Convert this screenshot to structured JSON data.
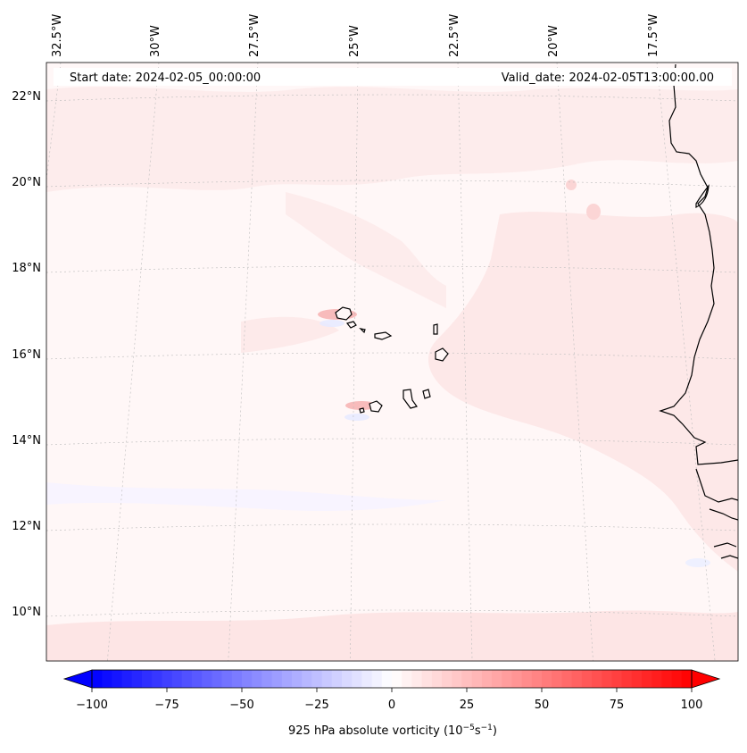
{
  "header": {
    "start_date": "Start date: 2024-02-05_00:00:00",
    "valid_date": "Valid_date: 2024-02-05T13:00:00.00"
  },
  "map": {
    "region": "Eastern tropical Atlantic, Cape Verde Islands and West African coast",
    "lon_labels": [
      "32.5°W",
      "30°W",
      "27.5°W",
      "25°W",
      "22.5°W",
      "20°W",
      "17.5°W"
    ],
    "lat_labels": [
      "22°N",
      "20°N",
      "18°N",
      "16°N",
      "14°N",
      "12°N",
      "10°N"
    ],
    "gridlines": true,
    "field": "925 hPa absolute vorticity",
    "colors": {
      "negative": "#0000ff",
      "zero": "#ffffff",
      "positive": "#ff0000",
      "coast": "#000000"
    }
  },
  "colorbar": {
    "tick_labels": [
      "−100",
      "−75",
      "−50",
      "−25",
      "0",
      "25",
      "50",
      "75",
      "100"
    ],
    "label": "925 hPa absolute vorticity (10",
    "label_exp1": "−5",
    "label_mid": "s",
    "label_exp2": "−1",
    "label_end": ")",
    "range": [
      -100,
      100
    ],
    "levels": 60
  }
}
